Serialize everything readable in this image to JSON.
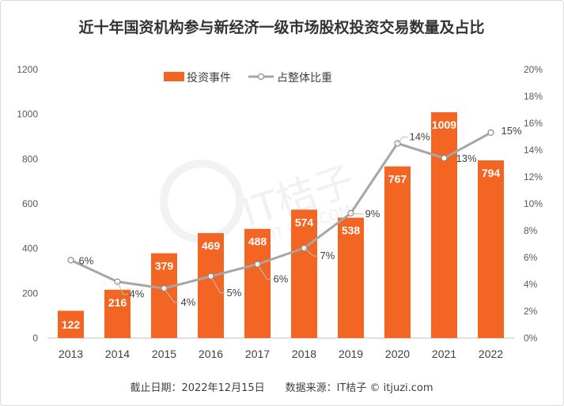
{
  "chart_data": {
    "type": "bar+line",
    "title": "近十年国资机构参与新经济一级市场股权投资交易数量及占比",
    "categories": [
      "2013",
      "2014",
      "2015",
      "2016",
      "2017",
      "2018",
      "2019",
      "2020",
      "2021",
      "2022"
    ],
    "series": [
      {
        "name": "投资事件",
        "type": "bar",
        "axis": "left",
        "values": [
          122,
          216,
          379,
          469,
          488,
          574,
          538,
          767,
          1009,
          794
        ],
        "labels": [
          "122",
          "216",
          "379",
          "469",
          "488",
          "574",
          "538",
          "767",
          "1009",
          "794"
        ]
      },
      {
        "name": "占整体比重",
        "type": "line",
        "axis": "right",
        "values": [
          5.8,
          4.2,
          3.7,
          4.6,
          5.5,
          6.7,
          9.3,
          14.5,
          13.4,
          15.3
        ],
        "labels": [
          "6%",
          "4%",
          "4%",
          "5%",
          "6%",
          "7%",
          "9%",
          "14%",
          "13%",
          "15%"
        ]
      }
    ],
    "y_left": {
      "min": 0,
      "max": 1200,
      "ticks": [
        "0",
        "200",
        "400",
        "600",
        "800",
        "1000",
        "1200"
      ]
    },
    "y_right": {
      "min": 0,
      "max": 20,
      "ticks": [
        "0%",
        "2%",
        "4%",
        "6%",
        "8%",
        "10%",
        "12%",
        "14%",
        "16%",
        "18%",
        "20%"
      ]
    },
    "legend_position": "top-center",
    "grid": false
  },
  "colors": {
    "bar": "#f26522",
    "line": "#a6a6a6",
    "marker_stroke": "#8c8c8c"
  },
  "footer": "截止日期：2022年12月15日　　数据来源：IT桔子 © itjuzi.com",
  "watermark": {
    "brand": "IT桔子",
    "site": "IT JUZI.COM"
  }
}
